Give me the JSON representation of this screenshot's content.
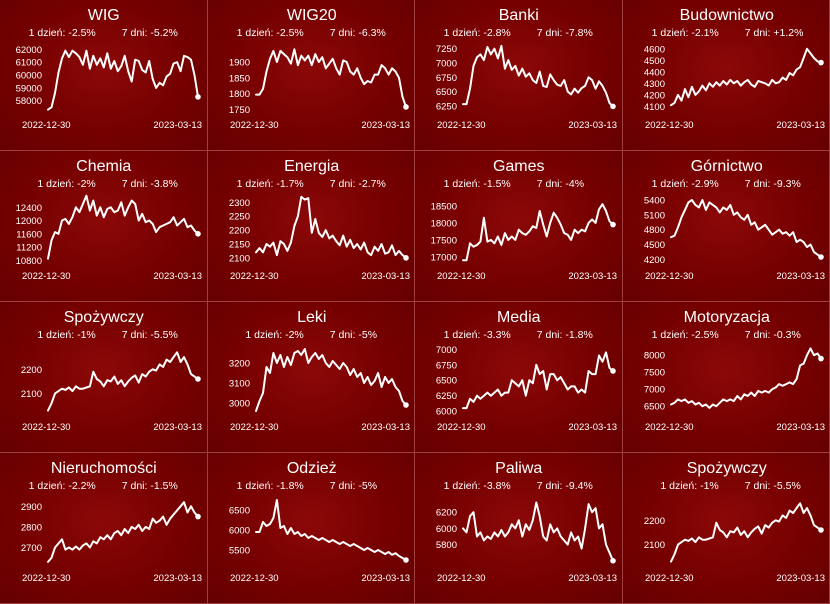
{
  "chart_data": [
    {
      "type": "line",
      "title": "WIG",
      "stats": {
        "d1": "1 dzień: -2.5%",
        "d7": "7 dni: -5.2%"
      },
      "x_start": "2022-12-30",
      "x_end": "2023-03-13",
      "yticks": [
        58000,
        59000,
        60000,
        61000,
        62000
      ],
      "ylim": [
        57200,
        62500
      ],
      "values": [
        57300,
        57500,
        58600,
        60200,
        61300,
        61900,
        61400,
        61900,
        61700,
        61400,
        60800,
        61900,
        60500,
        61500,
        60800,
        61300,
        60600,
        61700,
        60500,
        61100,
        60300,
        60700,
        61500,
        60300,
        59500,
        61200,
        61100,
        60400,
        60200,
        61100,
        59700,
        59000,
        59400,
        59200,
        59900,
        60100,
        60900,
        61000,
        60300,
        61500,
        61400,
        61200,
        60000,
        58300
      ]
    },
    {
      "type": "line",
      "title": "WIG20",
      "stats": {
        "d1": "1 dzień: -2.5%",
        "d7": "7 dni: -6.3%"
      },
      "x_start": "2022-12-30",
      "x_end": "2023-03-13",
      "yticks": [
        1750,
        1800,
        1850,
        1900
      ],
      "ylim": [
        1745,
        1960
      ],
      "values": [
        1797,
        1797,
        1815,
        1870,
        1910,
        1935,
        1900,
        1935,
        1925,
        1915,
        1895,
        1940,
        1890,
        1920,
        1905,
        1920,
        1890,
        1925,
        1900,
        1915,
        1880,
        1895,
        1910,
        1880,
        1860,
        1905,
        1900,
        1870,
        1860,
        1880,
        1850,
        1830,
        1840,
        1835,
        1860,
        1860,
        1890,
        1880,
        1860,
        1880,
        1870,
        1850,
        1790,
        1758
      ]
    },
    {
      "type": "line",
      "title": "Banki",
      "stats": {
        "d1": "1 dzień: -2.8%",
        "d7": "7 dni: -7.8%"
      },
      "x_start": "2022-12-30",
      "x_end": "2023-03-13",
      "yticks": [
        6250,
        6500,
        6750,
        7000,
        7250
      ],
      "ylim": [
        6160,
        7350
      ],
      "values": [
        6280,
        6280,
        6550,
        6950,
        7100,
        7150,
        7050,
        7280,
        7150,
        7250,
        7080,
        7300,
        6900,
        7050,
        6880,
        6950,
        6780,
        6900,
        6760,
        6820,
        6700,
        6650,
        6850,
        6600,
        6580,
        6800,
        6700,
        6620,
        6600,
        6700,
        6500,
        6450,
        6550,
        6480,
        6560,
        6600,
        6750,
        6700,
        6550,
        6680,
        6600,
        6480,
        6300,
        6240
      ]
    },
    {
      "type": "line",
      "title": "Budownictwo",
      "stats": {
        "d1": "1 dzień: -2.1%",
        "d7": "7 dni: +1.2%"
      },
      "x_start": "2022-12-30",
      "x_end": "2023-03-13",
      "yticks": [
        4100,
        4200,
        4300,
        4400,
        4500,
        4600
      ],
      "ylim": [
        4060,
        4650
      ],
      "values": [
        4110,
        4130,
        4200,
        4150,
        4250,
        4180,
        4270,
        4200,
        4230,
        4280,
        4240,
        4300,
        4270,
        4310,
        4280,
        4320,
        4290,
        4330,
        4300,
        4320,
        4280,
        4310,
        4330,
        4290,
        4270,
        4320,
        4310,
        4300,
        4280,
        4330,
        4300,
        4310,
        4350,
        4330,
        4390,
        4370,
        4420,
        4440,
        4520,
        4600,
        4560,
        4520,
        4490,
        4480
      ]
    },
    {
      "type": "line",
      "title": "Chemia",
      "stats": {
        "d1": "1 dzień: -2%",
        "d7": "7 dni: -3.8%"
      },
      "x_start": "2022-12-30",
      "x_end": "2023-03-13",
      "yticks": [
        10800,
        11200,
        11600,
        12000,
        12400
      ],
      "ylim": [
        10750,
        12800
      ],
      "values": [
        10850,
        11400,
        11650,
        11600,
        12000,
        12050,
        11900,
        12100,
        12400,
        12250,
        12500,
        12750,
        12300,
        12600,
        12150,
        12400,
        12100,
        12350,
        12400,
        12250,
        12300,
        12550,
        12150,
        12400,
        12600,
        12500,
        12000,
        12200,
        11950,
        12000,
        11900,
        11650,
        11800,
        11850,
        11900,
        11950,
        12100,
        11850,
        11950,
        12050,
        11800,
        11850,
        11700,
        11600
      ]
    },
    {
      "type": "line",
      "title": "Energia",
      "stats": {
        "d1": "1 dzień: -1.7%",
        "d7": "7 dni: -2.7%"
      },
      "x_start": "2022-12-30",
      "x_end": "2023-03-13",
      "yticks": [
        2100,
        2150,
        2200,
        2250,
        2300
      ],
      "ylim": [
        2085,
        2330
      ],
      "values": [
        2120,
        2135,
        2120,
        2150,
        2140,
        2155,
        2110,
        2160,
        2150,
        2125,
        2155,
        2215,
        2250,
        2320,
        2310,
        2315,
        2190,
        2240,
        2190,
        2175,
        2200,
        2170,
        2180,
        2160,
        2145,
        2180,
        2140,
        2165,
        2135,
        2150,
        2130,
        2155,
        2120,
        2110,
        2140,
        2125,
        2150,
        2115,
        2120,
        2145,
        2110,
        2125,
        2110,
        2100
      ]
    },
    {
      "type": "line",
      "title": "Games",
      "stats": {
        "d1": "1 dzień: -1.5%",
        "d7": "7 dni: -4%"
      },
      "x_start": "2022-12-30",
      "x_end": "2023-03-13",
      "yticks": [
        17000,
        17500,
        18000,
        18500
      ],
      "ylim": [
        16850,
        18850
      ],
      "values": [
        16900,
        16900,
        17400,
        17300,
        17350,
        17450,
        18150,
        17450,
        17500,
        17400,
        17600,
        17350,
        17700,
        17500,
        17600,
        17500,
        17800,
        17700,
        17650,
        17750,
        17900,
        17850,
        18350,
        17950,
        17600,
        18000,
        18300,
        18150,
        17950,
        17700,
        17650,
        17500,
        17800,
        17700,
        17800,
        17750,
        18000,
        18100,
        18000,
        18400,
        18550,
        18350,
        18050,
        17950
      ]
    },
    {
      "type": "line",
      "title": "Górnictwo",
      "stats": {
        "d1": "1 dzień: -2.9%",
        "d7": "7 dni: -9.3%"
      },
      "x_start": "2022-12-30",
      "x_end": "2023-03-13",
      "yticks": [
        4200,
        4500,
        4800,
        5100,
        5400
      ],
      "ylim": [
        4150,
        5520
      ],
      "values": [
        4650,
        4680,
        4850,
        5050,
        5200,
        5350,
        5400,
        5300,
        5250,
        5400,
        5200,
        5350,
        5300,
        5250,
        5150,
        5250,
        5200,
        5300,
        5100,
        5150,
        5050,
        5000,
        5100,
        4900,
        4950,
        4800,
        4850,
        4900,
        4800,
        4700,
        4750,
        4800,
        4720,
        4750,
        4680,
        4750,
        4550,
        4600,
        4550,
        4450,
        4500,
        4350,
        4300,
        4250
      ]
    },
    {
      "type": "line",
      "title": "Spożywczy",
      "stats": {
        "d1": "1 dzień: -1%",
        "d7": "7 dni: -5.5%"
      },
      "x_start": "2022-12-30",
      "x_end": "2023-03-13",
      "yticks": [
        2100,
        2200
      ],
      "ylim": [
        2020,
        2300
      ],
      "values": [
        2030,
        2060,
        2100,
        2110,
        2120,
        2115,
        2125,
        2110,
        2130,
        2120,
        2120,
        2125,
        2130,
        2190,
        2160,
        2150,
        2130,
        2155,
        2150,
        2170,
        2140,
        2155,
        2130,
        2150,
        2165,
        2175,
        2145,
        2180,
        2170,
        2190,
        2200,
        2195,
        2220,
        2210,
        2240,
        2230,
        2250,
        2270,
        2230,
        2250,
        2220,
        2180,
        2170,
        2160
      ]
    },
    {
      "type": "line",
      "title": "Leki",
      "stats": {
        "d1": "1 dzień: -2%",
        "d7": "7 dni: -5%"
      },
      "x_start": "2022-12-30",
      "x_end": "2023-03-13",
      "yticks": [
        3000,
        3100,
        3200
      ],
      "ylim": [
        2950,
        3290
      ],
      "values": [
        2960,
        3010,
        3050,
        3180,
        3150,
        3250,
        3200,
        3240,
        3180,
        3230,
        3190,
        3250,
        3260,
        3240,
        3270,
        3200,
        3230,
        3250,
        3220,
        3240,
        3200,
        3180,
        3210,
        3190,
        3170,
        3200,
        3180,
        3140,
        3170,
        3130,
        3150,
        3100,
        3130,
        3090,
        3110,
        3150,
        3080,
        3130,
        3100,
        3120,
        3080,
        3060,
        3010,
        2990
      ]
    },
    {
      "type": "line",
      "title": "Media",
      "stats": {
        "d1": "1 dzień: -3.3%",
        "d7": "7 dni: -1.8%"
      },
      "x_start": "2022-12-30",
      "x_end": "2023-03-13",
      "yticks": [
        6000,
        6250,
        6500,
        6750,
        7000
      ],
      "ylim": [
        5970,
        7070
      ],
      "values": [
        6050,
        6050,
        6200,
        6150,
        6250,
        6200,
        6250,
        6300,
        6250,
        6300,
        6350,
        6250,
        6300,
        6300,
        6500,
        6450,
        6400,
        6500,
        6250,
        6500,
        6450,
        6750,
        6600,
        6650,
        6350,
        6600,
        6600,
        6500,
        6550,
        6450,
        6350,
        6400,
        6400,
        6300,
        6350,
        6300,
        6650,
        6600,
        6600,
        6900,
        6800,
        6950,
        6700,
        6650
      ]
    },
    {
      "type": "line",
      "title": "Motoryzacja",
      "stats": {
        "d1": "1 dzień: -2.5%",
        "d7": "7 dni: -0.3%"
      },
      "x_start": "2022-12-30",
      "x_end": "2023-03-13",
      "yticks": [
        6500,
        7000,
        7500,
        8000
      ],
      "ylim": [
        6300,
        8300
      ],
      "values": [
        6550,
        6600,
        6700,
        6650,
        6700,
        6600,
        6650,
        6550,
        6600,
        6500,
        6550,
        6450,
        6550,
        6500,
        6600,
        6700,
        6650,
        6700,
        6650,
        6800,
        6700,
        6850,
        6800,
        6900,
        6800,
        6950,
        6900,
        6950,
        6900,
        7000,
        7050,
        7150,
        7100,
        7150,
        7200,
        7150,
        7300,
        7700,
        7750,
        8000,
        8200,
        8000,
        8050,
        7900
      ]
    },
    {
      "type": "line",
      "title": "Nieruchomości",
      "stats": {
        "d1": "1 dzień: -2.2%",
        "d7": "7 dni: -1.5%"
      },
      "x_start": "2022-12-30",
      "x_end": "2023-03-13",
      "yticks": [
        2700,
        2800,
        2900
      ],
      "ylim": [
        2620,
        2950
      ],
      "values": [
        2630,
        2650,
        2700,
        2720,
        2740,
        2690,
        2700,
        2690,
        2705,
        2690,
        2710,
        2720,
        2700,
        2730,
        2720,
        2750,
        2740,
        2760,
        2740,
        2770,
        2780,
        2760,
        2790,
        2770,
        2800,
        2790,
        2810,
        2780,
        2800,
        2790,
        2840,
        2820,
        2830,
        2850,
        2810,
        2840,
        2860,
        2880,
        2900,
        2920,
        2870,
        2900,
        2870,
        2850
      ]
    },
    {
      "type": "line",
      "title": "Odzież",
      "stats": {
        "d1": "1 dzień: -1.8%",
        "d7": "7 dni: -5%"
      },
      "x_start": "2022-12-30",
      "x_end": "2023-03-13",
      "yticks": [
        5500,
        6000,
        6500
      ],
      "ylim": [
        5150,
        6850
      ],
      "values": [
        5950,
        5950,
        6200,
        6100,
        6150,
        6300,
        6750,
        6050,
        6100,
        5900,
        6050,
        5900,
        5950,
        5850,
        5900,
        5800,
        5850,
        5800,
        5750,
        5800,
        5750,
        5700,
        5750,
        5700,
        5650,
        5700,
        5650,
        5600,
        5650,
        5600,
        5550,
        5500,
        5550,
        5500,
        5450,
        5500,
        5450,
        5400,
        5450,
        5380,
        5420,
        5350,
        5300,
        5250
      ]
    },
    {
      "type": "line",
      "title": "Paliwa",
      "stats": {
        "d1": "1 dzień: -3.8%",
        "d7": "7 dni: -9.4%"
      },
      "x_start": "2022-12-30",
      "x_end": "2023-03-13",
      "yticks": [
        5800,
        6000,
        6200
      ],
      "ylim": [
        5560,
        6400
      ],
      "values": [
        6000,
        5950,
        6150,
        6200,
        5900,
        5950,
        5850,
        5900,
        5870,
        5950,
        5900,
        5980,
        5900,
        5950,
        6050,
        6000,
        6100,
        5900,
        6050,
        5980,
        6100,
        6320,
        6150,
        5900,
        5850,
        6050,
        5950,
        6000,
        5900,
        5850,
        5800,
        5950,
        5850,
        5900,
        5750,
        6000,
        6300,
        6200,
        6250,
        6000,
        6050,
        5800,
        5700,
        5600
      ]
    },
    {
      "type": "line",
      "title": "Spożywczy",
      "stats": {
        "d1": "1 dzień: -1%",
        "d7": "7 dni: -5.5%"
      },
      "x_start": "2022-12-30",
      "x_end": "2023-03-13",
      "yticks": [
        2100,
        2200
      ],
      "ylim": [
        2020,
        2300
      ],
      "values": [
        2030,
        2060,
        2100,
        2110,
        2120,
        2115,
        2125,
        2110,
        2130,
        2120,
        2120,
        2125,
        2130,
        2190,
        2160,
        2150,
        2130,
        2155,
        2150,
        2170,
        2140,
        2155,
        2130,
        2150,
        2165,
        2175,
        2145,
        2180,
        2170,
        2190,
        2200,
        2195,
        2220,
        2210,
        2240,
        2230,
        2250,
        2270,
        2230,
        2250,
        2220,
        2180,
        2170,
        2160
      ]
    }
  ],
  "colors": {
    "background": "#6b0000",
    "line": "#ffffff",
    "border": "#a04040"
  }
}
